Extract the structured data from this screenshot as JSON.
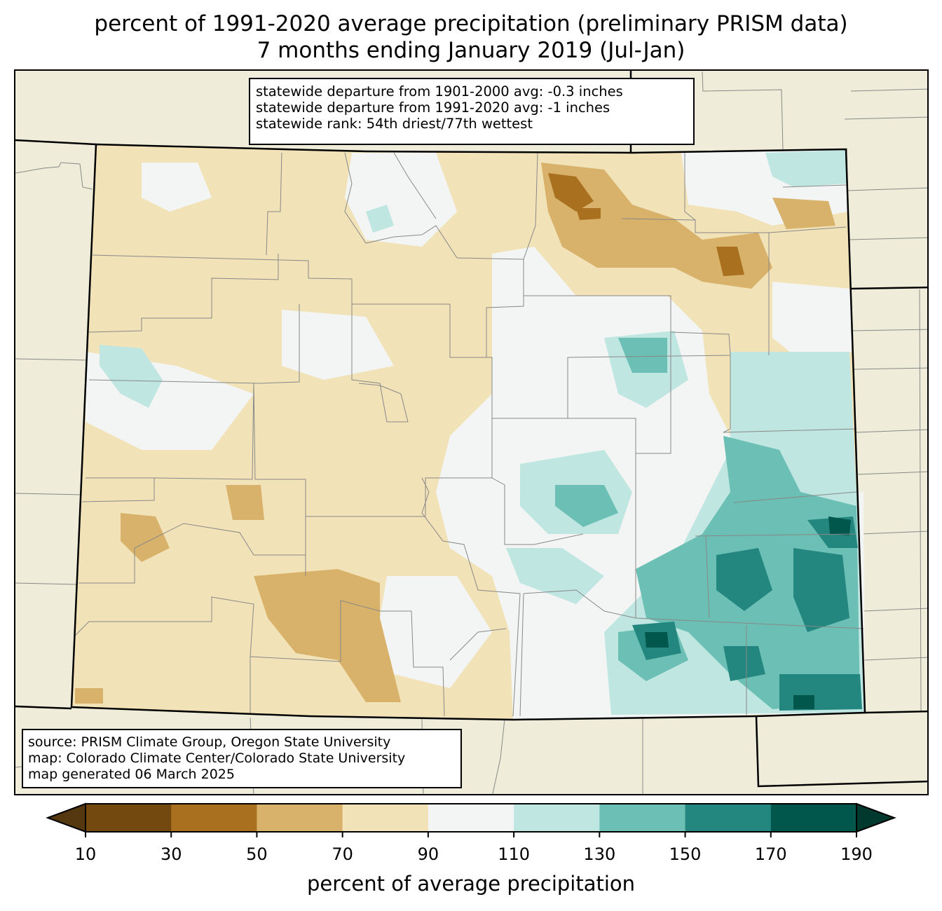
{
  "title": {
    "line1": "percent of 1991-2020 average precipitation (preliminary PRISM data)",
    "line2": "7 months ending January 2019 (Jul-Jan)"
  },
  "stats": {
    "line1": "statewide departure from 1901-2000 avg: -0.3 inches",
    "line2": "statewide departure from 1991-2020 avg: -1 inches",
    "line3": "statewide rank: 54th driest/77th wettest"
  },
  "source": {
    "line1": "source: PRISM Climate Group, Oregon State University",
    "line2": "map: Colorado Climate Center/Colorado State University",
    "line3": "map generated 06 March 2025"
  },
  "colorbar": {
    "label": "percent of average precipitation",
    "ticks": [
      "10",
      "30",
      "50",
      "70",
      "90",
      "110",
      "130",
      "150",
      "170",
      "190"
    ],
    "colors": [
      "#734910",
      "#a9701f",
      "#d8b26a",
      "#f2e2b8",
      "#f3f5f4",
      "#bfe6e1",
      "#6cbfb4",
      "#23877f",
      "#02574c"
    ],
    "under_color": "#553810",
    "over_color": "#01392f"
  },
  "map_colors": {
    "background": "#efedda",
    "state_fill": "#f2e2b8"
  }
}
